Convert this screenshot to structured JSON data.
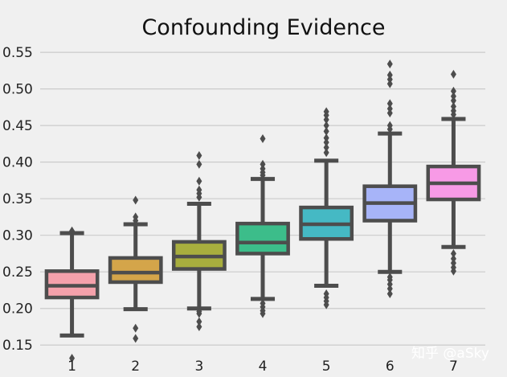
{
  "chart_data": {
    "type": "box",
    "title": "Confounding Evidence",
    "xlabel": "",
    "ylabel": "",
    "ylim": [
      0.125,
      0.56
    ],
    "yticks": [
      0.15,
      0.2,
      0.25,
      0.3,
      0.35,
      0.4,
      0.45,
      0.5,
      0.55
    ],
    "ytick_labels": [
      "0.15",
      "0.20",
      "0.25",
      "0.30",
      "0.35",
      "0.40",
      "0.45",
      "0.50",
      "0.55"
    ],
    "grid": true,
    "categories": [
      "1",
      "2",
      "3",
      "4",
      "5",
      "6",
      "7"
    ],
    "boxes": [
      {
        "category": "1",
        "color": "#f4a1ab",
        "q1": 0.215,
        "median": 0.231,
        "q3": 0.251,
        "whisker_low": 0.163,
        "whisker_high": 0.303,
        "outliers": [
          0.132,
          0.306
        ]
      },
      {
        "category": "2",
        "color": "#d4a54a",
        "q1": 0.236,
        "median": 0.249,
        "q3": 0.269,
        "whisker_low": 0.199,
        "whisker_high": 0.315,
        "outliers": [
          0.159,
          0.173,
          0.32,
          0.325,
          0.348
        ]
      },
      {
        "category": "3",
        "color": "#a8ae3e",
        "q1": 0.254,
        "median": 0.271,
        "q3": 0.291,
        "whisker_low": 0.2,
        "whisker_high": 0.343,
        "outliers": [
          0.175,
          0.182,
          0.193,
          0.196,
          0.352,
          0.357,
          0.362,
          0.374,
          0.397,
          0.409
        ]
      },
      {
        "category": "4",
        "color": "#3cbd8a",
        "q1": 0.275,
        "median": 0.29,
        "q3": 0.316,
        "whisker_low": 0.213,
        "whisker_high": 0.377,
        "outliers": [
          0.193,
          0.197,
          0.202,
          0.207,
          0.382,
          0.386,
          0.391,
          0.397,
          0.432
        ]
      },
      {
        "category": "5",
        "color": "#45b9c4",
        "q1": 0.295,
        "median": 0.315,
        "q3": 0.338,
        "whisker_low": 0.231,
        "whisker_high": 0.402,
        "outliers": [
          0.205,
          0.21,
          0.215,
          0.22,
          0.413,
          0.42,
          0.427,
          0.433,
          0.442,
          0.45,
          0.458,
          0.464,
          0.469
        ]
      },
      {
        "category": "6",
        "color": "#a7b4f8",
        "q1": 0.32,
        "median": 0.344,
        "q3": 0.367,
        "whisker_low": 0.25,
        "whisker_high": 0.439,
        "outliers": [
          0.22,
          0.227,
          0.233,
          0.239,
          0.243,
          0.445,
          0.45,
          0.467,
          0.473,
          0.48,
          0.507,
          0.513,
          0.519,
          0.534
        ]
      },
      {
        "category": "7",
        "color": "#f79ae6",
        "q1": 0.349,
        "median": 0.371,
        "q3": 0.394,
        "whisker_low": 0.284,
        "whisker_high": 0.459,
        "outliers": [
          0.251,
          0.256,
          0.262,
          0.268,
          0.275,
          0.465,
          0.47,
          0.476,
          0.484,
          0.49,
          0.497,
          0.52
        ]
      }
    ]
  },
  "watermark": "知乎 @aSky"
}
